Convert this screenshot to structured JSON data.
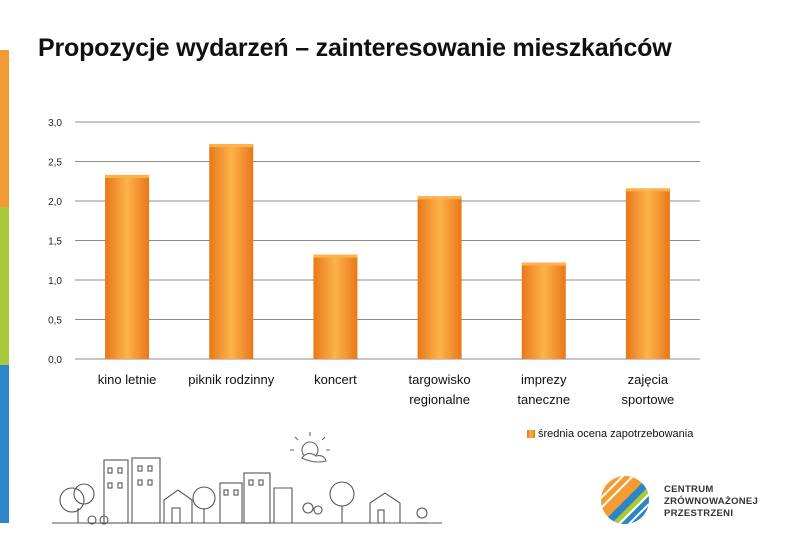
{
  "title": "Propozycje wydarzeń – zainteresowanie mieszkańców",
  "colors": {
    "bar": "#f7941d",
    "bar_light": "#fdb24a",
    "bar_dark": "#e8781a",
    "grid": "#8c8c8c",
    "side_orange": "#f39c33",
    "side_green": "#a8c93a",
    "side_blue": "#2a86c9"
  },
  "chart_data": {
    "type": "bar",
    "categories": [
      [
        "kino letnie"
      ],
      [
        "piknik rodzinny"
      ],
      [
        "koncert"
      ],
      [
        "targowisko",
        "regionalne"
      ],
      [
        "imprezy",
        "taneczne"
      ],
      [
        "zajęcia",
        "sportowe"
      ]
    ],
    "series": [
      {
        "name": "średnia ocena zapotrzebowania",
        "values": [
          2.33,
          2.72,
          1.32,
          2.06,
          1.22,
          2.16
        ]
      }
    ],
    "yticks": [
      "0,0",
      "0,5",
      "1,0",
      "1,5",
      "2,0",
      "2,5",
      "3,0"
    ],
    "ylim": [
      0,
      3
    ],
    "grid": true,
    "legend_position": "bottom-right"
  },
  "legend": {
    "label": "średnia ocena zapotrzebowania"
  },
  "logo": {
    "line1": "CENTRUM",
    "line2": "ZRÓWNOWAŻONEJ",
    "line3": "PRZESTRZENI"
  },
  "icons": [
    "city-doodle-icon",
    "sun-icon",
    "centrum-logo-icon"
  ]
}
